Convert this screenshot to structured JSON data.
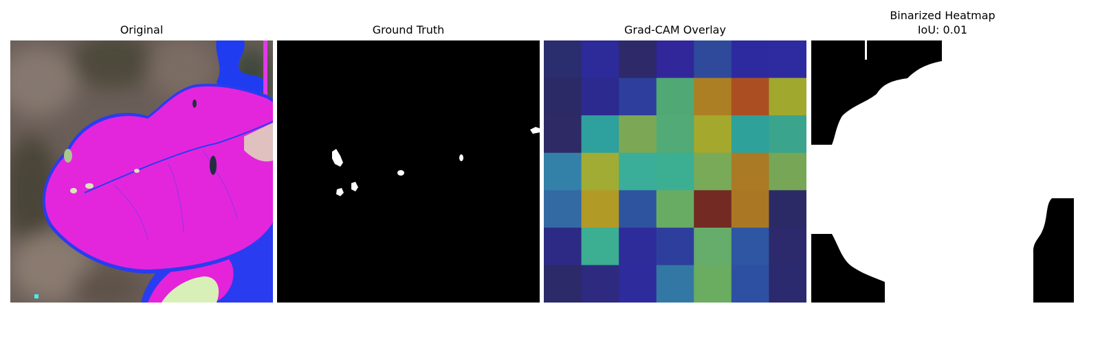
{
  "panels": [
    {
      "title": "Original"
    },
    {
      "title": "Ground Truth"
    },
    {
      "title": "Grad-CAM Overlay"
    },
    {
      "title": "Binarized Heatmap",
      "subtitle": "IoU: 0.01"
    }
  ],
  "gradcam_grid": [
    [
      "#2a2d6e",
      "#2d2a9a",
      "#2e2a6a",
      "#31269a",
      "#2f4a9a",
      "#2d2aa0",
      "#2e2aa0"
    ],
    [
      "#2c2a66",
      "#2c2a8e",
      "#2e3e9c",
      "#50a874",
      "#ad7f24",
      "#ab4f22",
      "#a0a82e"
    ],
    [
      "#2e2a66",
      "#2ea09e",
      "#7ca856",
      "#52aa76",
      "#a4a82c",
      "#2ea29a",
      "#3aa48c"
    ],
    [
      "#3380a8",
      "#a0ac34",
      "#3aae98",
      "#3cae92",
      "#78aa58",
      "#aa7a24",
      "#76a656"
    ],
    [
      "#336aa4",
      "#b29a26",
      "#2e54a0",
      "#68ac64",
      "#722a22",
      "#aa7824",
      "#2c2a66"
    ],
    [
      "#2c2a84",
      "#3cae92",
      "#2e2c9a",
      "#2e3e9c",
      "#66ac6a",
      "#2e56a2",
      "#2c2a6c"
    ],
    [
      "#2c2a68",
      "#2d2a80",
      "#2e2c9c",
      "#3378a4",
      "#6aac60",
      "#2e50a2",
      "#2c2a6e"
    ]
  ]
}
